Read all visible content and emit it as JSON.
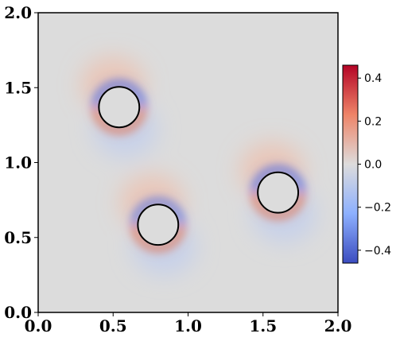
{
  "chart_data": {
    "type": "heatmap",
    "x_range": [
      0.0,
      2.0
    ],
    "y_range": [
      0.0,
      2.0
    ],
    "x_ticks": [
      "0.0",
      "0.5",
      "1.0",
      "1.5",
      "2.0"
    ],
    "y_ticks": [
      "0.0",
      "0.5",
      "1.0",
      "1.5",
      "2.0"
    ],
    "x_tick_values": [
      0.0,
      0.5,
      1.0,
      1.5,
      2.0
    ],
    "y_tick_values": [
      0.0,
      0.5,
      1.0,
      1.5,
      2.0
    ],
    "colormap": "coolwarm",
    "colorbar_range": [
      -0.46,
      0.46
    ],
    "colorbar_ticks": [
      "0.4",
      "0.2",
      "0.0",
      "−0.2",
      "−0.4"
    ],
    "colorbar_tick_values": [
      0.4,
      0.2,
      0.0,
      -0.2,
      -0.4
    ],
    "circles": [
      {
        "cx": 0.54,
        "cy": 1.37,
        "r": 0.135
      },
      {
        "cx": 0.8,
        "cy": 0.585,
        "r": 0.135
      },
      {
        "cx": 1.6,
        "cy": 0.8,
        "r": 0.135
      }
    ],
    "colors": {
      "background": "#dcdcdc",
      "positive": "#b40426",
      "negative": "#3b4cc0",
      "circle_stroke": "#000000"
    }
  }
}
